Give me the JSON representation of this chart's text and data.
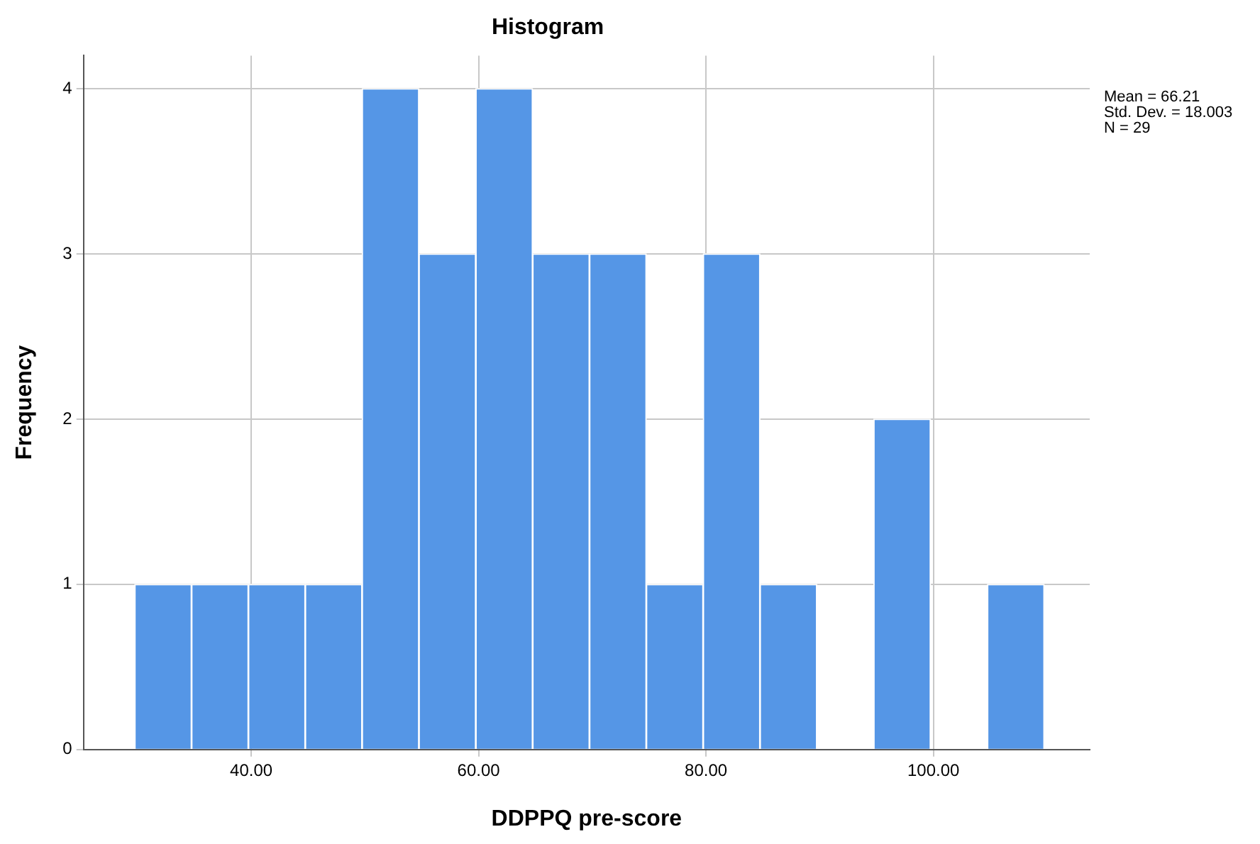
{
  "chart_data": {
    "type": "histogram",
    "title": "Histogram",
    "xlabel": "DDPPQ pre-score",
    "ylabel": "Frequency",
    "bins": [
      29.75,
      34.75,
      39.75,
      44.75,
      49.75,
      54.75,
      59.75,
      64.75,
      69.75,
      74.75,
      79.75,
      84.75,
      89.75,
      94.75,
      99.75,
      104.75,
      109.75
    ],
    "values": [
      1,
      1,
      1,
      1,
      4,
      3,
      4,
      3,
      3,
      1,
      3,
      1,
      0,
      2,
      0,
      1
    ],
    "color": "#5596e6",
    "xlim": [
      25.25,
      113.75
    ],
    "xticks": [
      {
        "value": 40,
        "label": "40.00"
      },
      {
        "value": 60,
        "label": "60.00"
      },
      {
        "value": 80,
        "label": "80.00"
      },
      {
        "value": 100,
        "label": "100.00"
      }
    ],
    "ylim": [
      0,
      4.2
    ],
    "yticks": [
      0,
      1,
      2,
      3,
      4
    ],
    "grid": true,
    "annotations": [
      "Mean = 66.21",
      "Std. Dev. = 18.003",
      "N = 29"
    ]
  }
}
